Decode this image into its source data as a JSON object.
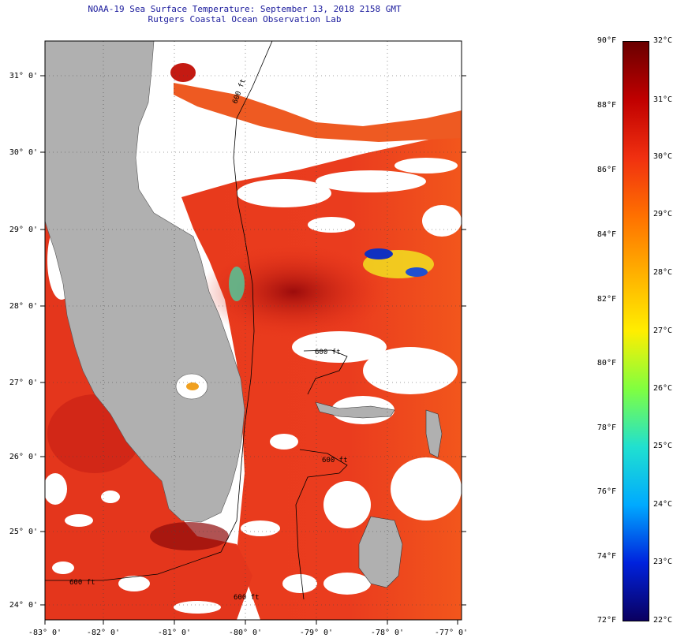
{
  "title": {
    "line1": "NOAA-19 Sea Surface Temperature:  September 13, 2018 2158 GMT",
    "line2": "Rutgers Coastal Ocean Observation Lab"
  },
  "map": {
    "x_ticks": [
      "-83° 0'",
      "-82° 0'",
      "-81° 0'",
      "-80° 0'",
      "-79° 0'",
      "-78° 0'",
      "-77° 0'"
    ],
    "y_ticks": [
      "31° 0'",
      "30° 0'",
      "29° 0'",
      "28° 0'",
      "27° 0'",
      "26° 0'",
      "25° 0'",
      "24° 0'"
    ],
    "contour_labels": [
      "600 ft",
      "600 ft",
      "600 ft",
      "600 ft",
      "600 ft"
    ],
    "colors": {
      "land": "#b0b0b0",
      "no_data": "#ffffff",
      "sea_warm": "#e8321a",
      "sea_hot": "#b81010"
    }
  },
  "colorbar": {
    "fahrenheit_labels": [
      "90°F",
      "88°F",
      "86°F",
      "84°F",
      "82°F",
      "80°F",
      "78°F",
      "76°F",
      "74°F",
      "72°F"
    ],
    "celsius_labels": [
      "32°C",
      "31°C",
      "30°C",
      "29°C",
      "28°C",
      "27°C",
      "26°C",
      "25°C",
      "24°C",
      "23°C",
      "22°C"
    ],
    "range_f": [
      72,
      90
    ],
    "range_c": [
      22,
      32
    ],
    "scale_colors": [
      "#0a0060",
      "#0022dd",
      "#00aaff",
      "#20e0d0",
      "#80ff40",
      "#ffee00",
      "#ffb000",
      "#ff7000",
      "#f03010",
      "#c00000",
      "#6a0000"
    ]
  }
}
